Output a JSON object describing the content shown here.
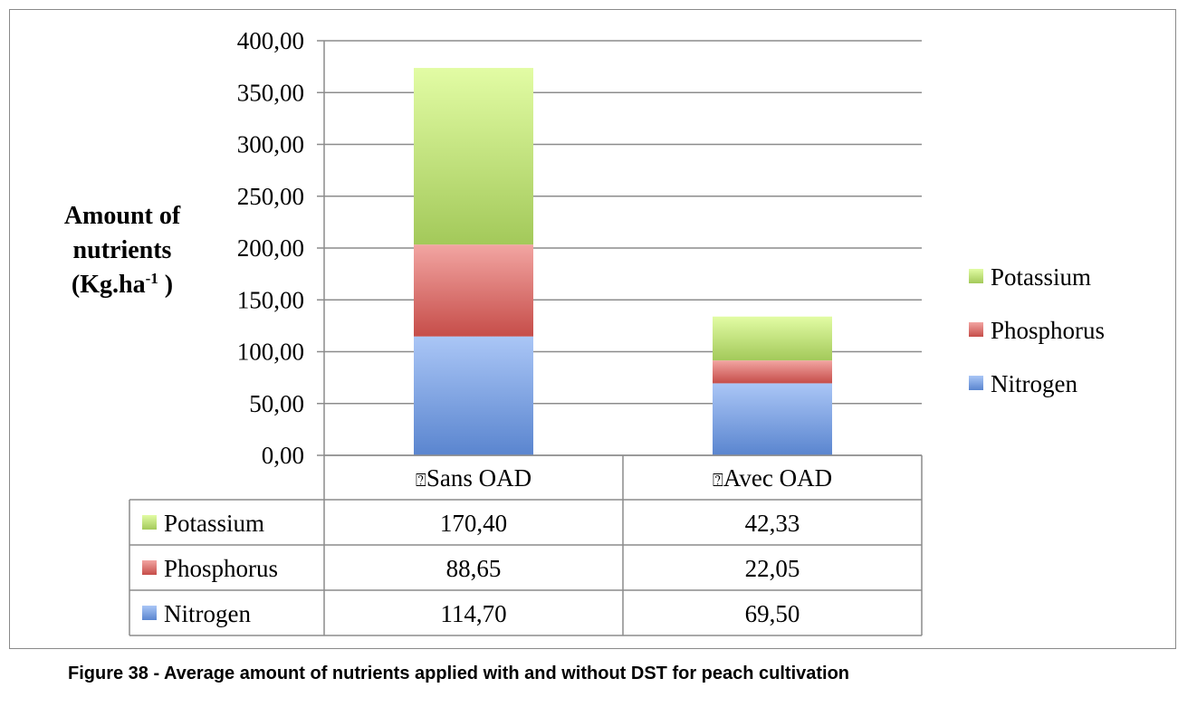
{
  "chart_data": {
    "type": "bar",
    "stacked": true,
    "title": "",
    "categories": [
      "Sans OAD",
      "Avec OAD"
    ],
    "category_prefix_glyph": "?",
    "series": [
      {
        "name": "Nitrogen",
        "values": [
          114.7,
          69.5
        ],
        "labels": [
          "114,70",
          "69,50"
        ],
        "color_top": "#aac6f6",
        "color_bottom": "#5a85cf"
      },
      {
        "name": "Phosphorus",
        "values": [
          88.65,
          22.05
        ],
        "labels": [
          "88,65",
          "22,05"
        ],
        "color_top": "#f2a5a2",
        "color_bottom": "#c64d49"
      },
      {
        "name": "Potassium",
        "values": [
          170.4,
          42.33
        ],
        "labels": [
          "170,40",
          "42,33"
        ],
        "color_top": "#e2fca4",
        "color_bottom": "#a3c95a"
      }
    ],
    "ylabel_lines": [
      "Amount of",
      "nutrients",
      "(Kg.ha"
    ],
    "ylabel_sup": "-1",
    "ylabel_end": " )",
    "ylim": [
      0,
      400
    ],
    "yticks": [
      0,
      50,
      100,
      150,
      200,
      250,
      300,
      350,
      400
    ],
    "ytick_labels": [
      "0,00",
      "50,00",
      "100,00",
      "150,00",
      "200,00",
      "250,00",
      "300,00",
      "350,00",
      "400,00"
    ],
    "grid": true,
    "legend_placement": "right",
    "legend_order": [
      "Potassium",
      "Phosphorus",
      "Nitrogen"
    ],
    "data_table": true,
    "table_row_order": [
      "Potassium",
      "Phosphorus",
      "Nitrogen"
    ]
  },
  "caption": "Figure 38 - Average amount of nutrients applied with and without DST for peach cultivation"
}
